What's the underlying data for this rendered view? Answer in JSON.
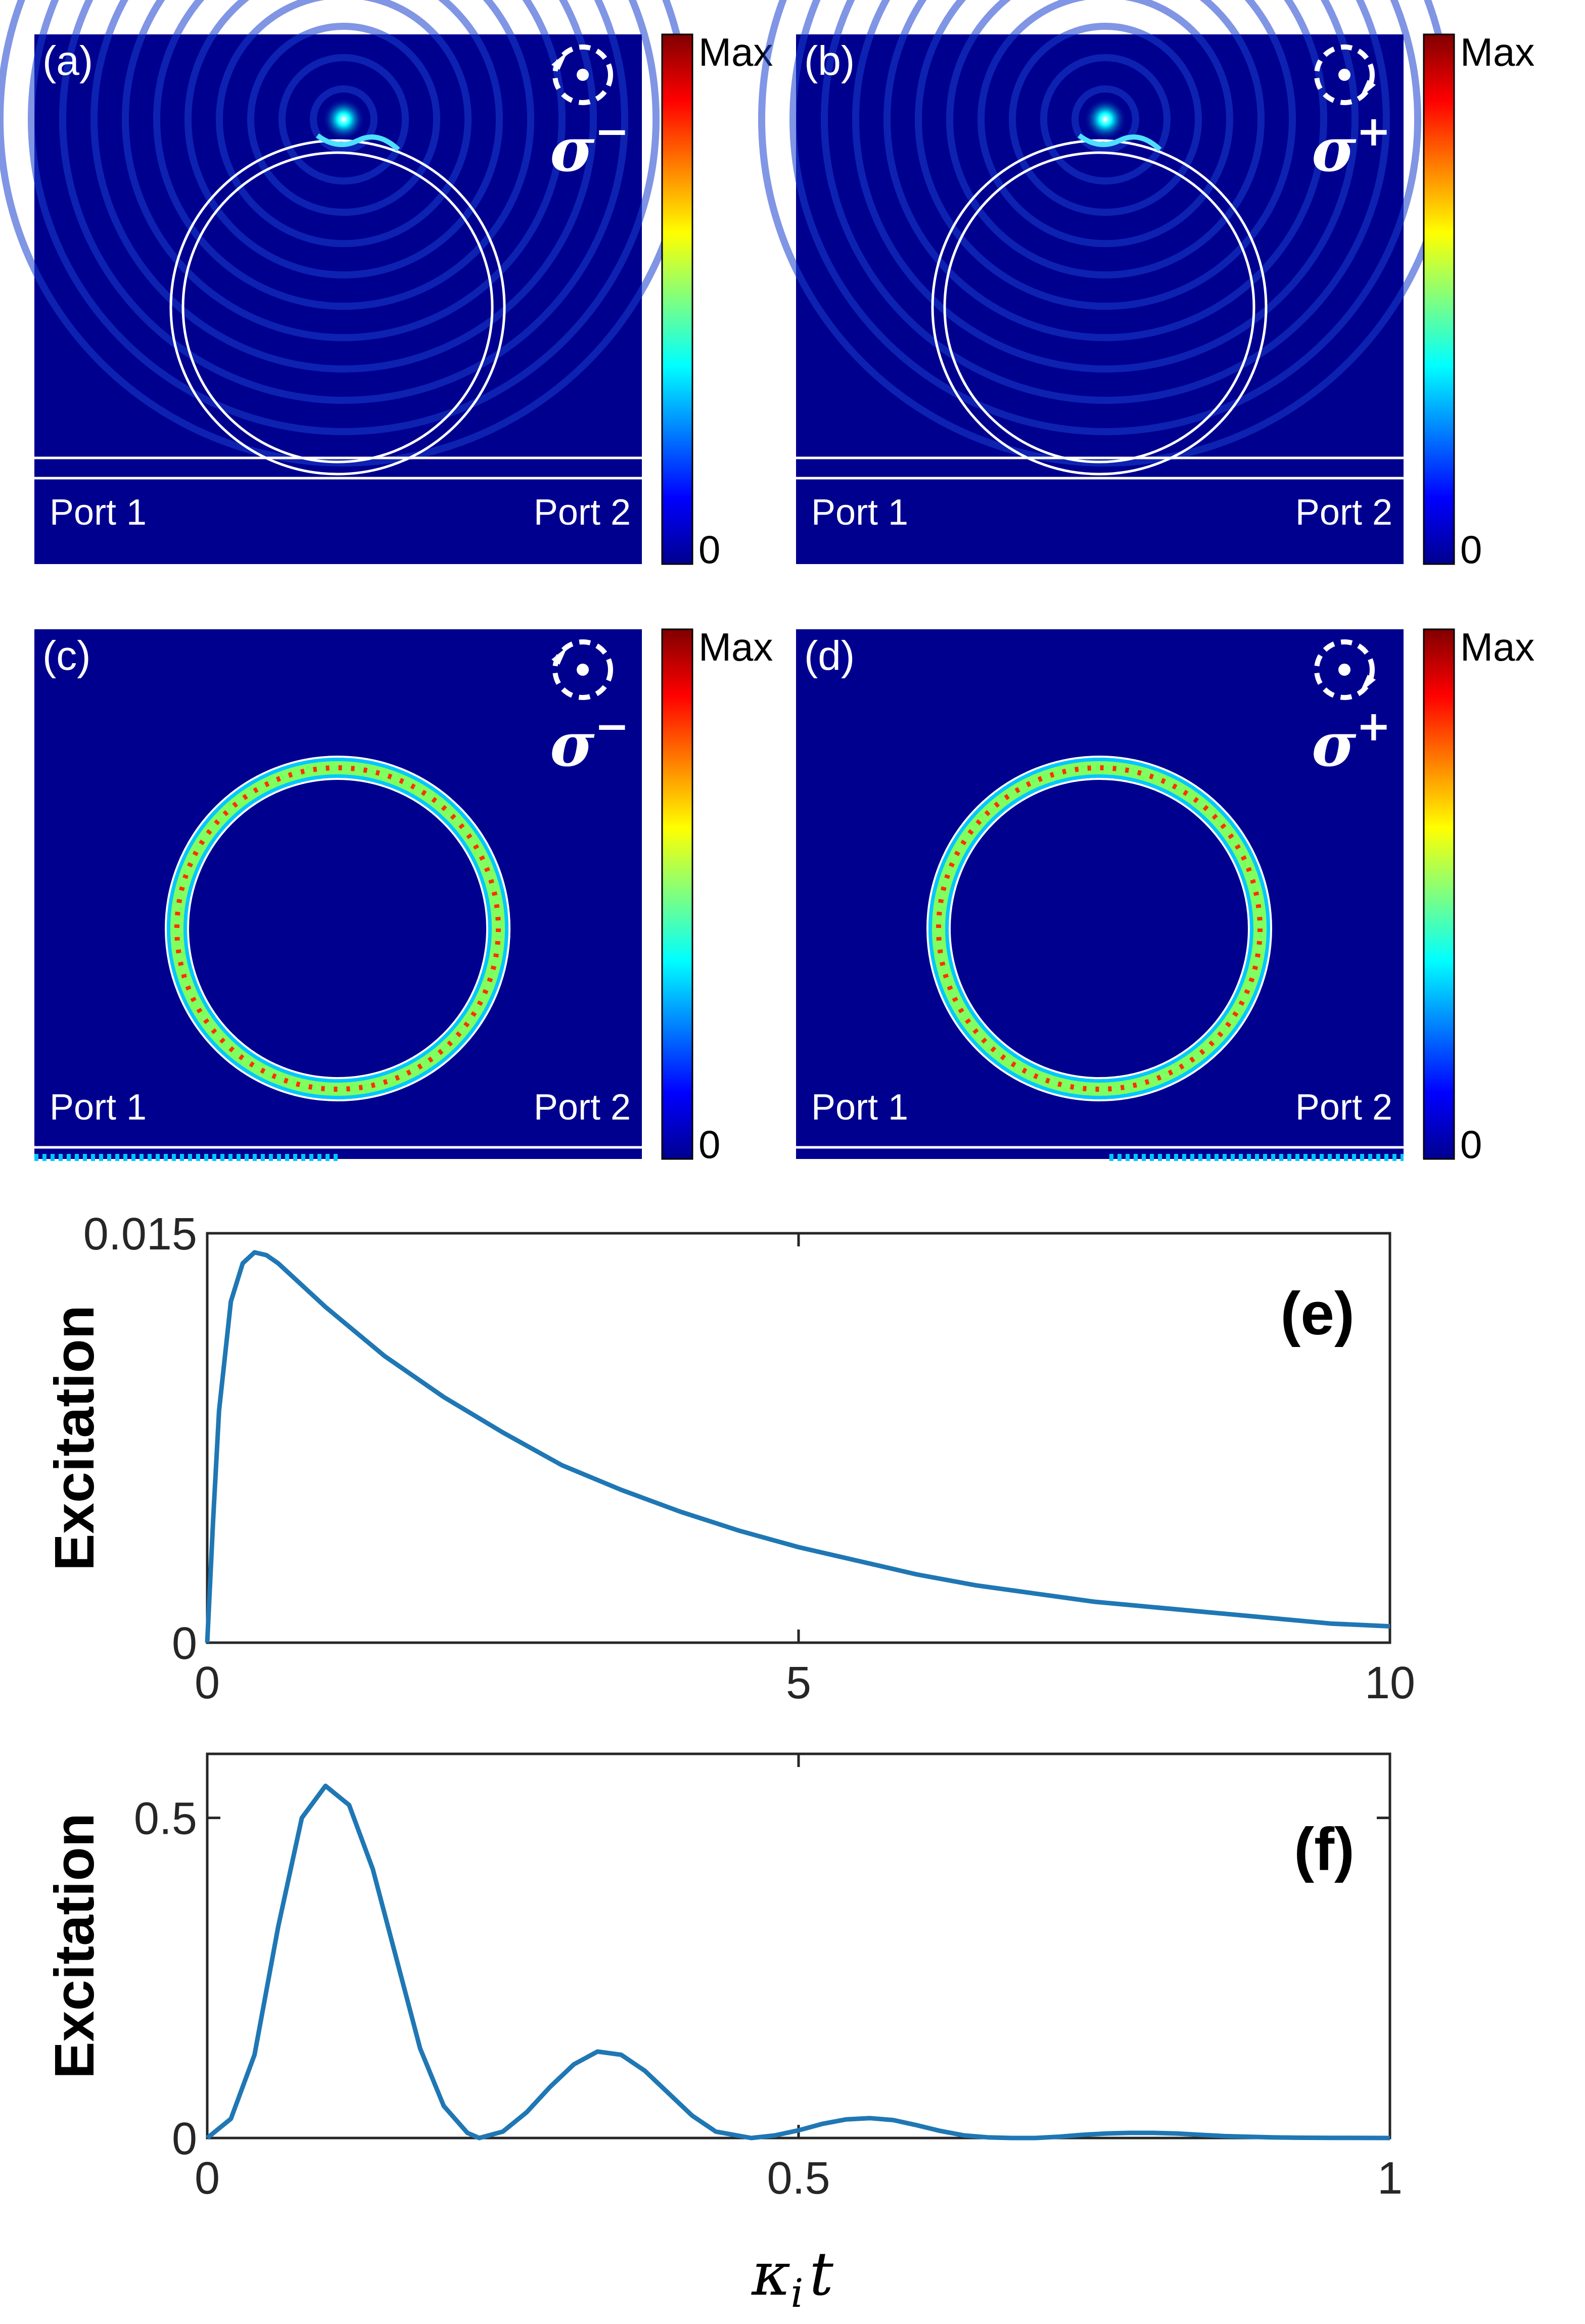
{
  "figure": {
    "panels": [
      {
        "id": "a",
        "label": "(a)",
        "polarization": "σ",
        "pol_sign": "−",
        "rotation": "ccw",
        "port_left": "Port 1",
        "port_right": "Port 2",
        "cb_max": "Max",
        "cb_min": "0",
        "mode": "emitter"
      },
      {
        "id": "b",
        "label": "(b)",
        "polarization": "σ",
        "pol_sign": "+",
        "rotation": "cw",
        "port_left": "Port 1",
        "port_right": "Port 2",
        "cb_max": "Max",
        "cb_min": "0",
        "mode": "emitter"
      },
      {
        "id": "c",
        "label": "(c)",
        "polarization": "σ",
        "pol_sign": "−",
        "rotation": "ccw",
        "port_left": "Port 1",
        "port_right": "Port 2",
        "cb_max": "Max",
        "cb_min": "0",
        "mode": "resonant-left"
      },
      {
        "id": "d",
        "label": "(d)",
        "polarization": "σ",
        "pol_sign": "+",
        "rotation": "cw",
        "port_left": "Port 1",
        "port_right": "Port 2",
        "cb_max": "Max",
        "cb_min": "0",
        "mode": "resonant-right"
      }
    ],
    "colors": {
      "field_bg": "#00008f",
      "ring": "#ffffff",
      "curve": "#1f77b4",
      "axis": "#262626"
    },
    "xlabel_sym": "κ",
    "xlabel_sub": "i",
    "xlabel_t": "t"
  },
  "chart_data": [
    {
      "type": "line",
      "panel_label": "(e)",
      "ylabel": "Excitation",
      "xlim": [
        0,
        10
      ],
      "ylim": [
        0,
        0.015
      ],
      "xticks": [
        0,
        5,
        10
      ],
      "xtick_labels": [
        "0",
        "5",
        "10"
      ],
      "yticks": [
        0,
        0.015
      ],
      "ytick_labels": [
        "0",
        "0.015"
      ],
      "x": [
        0,
        0.05,
        0.1,
        0.2,
        0.3,
        0.4,
        0.5,
        0.6,
        0.8,
        1.0,
        1.5,
        2.0,
        2.5,
        3.0,
        3.5,
        4.0,
        4.5,
        5.0,
        5.5,
        6.0,
        6.5,
        7.0,
        7.5,
        8.0,
        8.5,
        9.0,
        9.5,
        10.0
      ],
      "y": [
        0,
        0.0045,
        0.0085,
        0.0125,
        0.0139,
        0.0143,
        0.0142,
        0.0139,
        0.0131,
        0.0123,
        0.0105,
        0.009,
        0.0077,
        0.0065,
        0.0056,
        0.0048,
        0.0041,
        0.0035,
        0.003,
        0.0025,
        0.0021,
        0.0018,
        0.0015,
        0.0013,
        0.0011,
        0.0009,
        0.0007,
        0.0006
      ]
    },
    {
      "type": "line",
      "panel_label": "(f)",
      "ylabel": "Excitation",
      "xlim": [
        0,
        1
      ],
      "ylim": [
        0,
        0.6
      ],
      "xticks": [
        0,
        0.5,
        1
      ],
      "xtick_labels": [
        "0",
        "0.5",
        "1"
      ],
      "yticks": [
        0,
        0.5
      ],
      "ytick_labels": [
        "0",
        "0.5"
      ],
      "x": [
        0,
        0.02,
        0.04,
        0.06,
        0.08,
        0.1,
        0.12,
        0.14,
        0.16,
        0.18,
        0.2,
        0.22,
        0.23,
        0.25,
        0.27,
        0.29,
        0.31,
        0.33,
        0.35,
        0.37,
        0.39,
        0.41,
        0.43,
        0.46,
        0.48,
        0.5,
        0.52,
        0.54,
        0.56,
        0.58,
        0.6,
        0.62,
        0.64,
        0.66,
        0.68,
        0.7,
        0.72,
        0.74,
        0.76,
        0.78,
        0.8,
        0.82,
        0.84,
        0.86,
        0.88,
        0.9,
        0.92,
        0.95,
        1.0
      ],
      "y": [
        0,
        0.03,
        0.13,
        0.33,
        0.5,
        0.55,
        0.52,
        0.42,
        0.28,
        0.14,
        0.05,
        0.008,
        0.0,
        0.01,
        0.04,
        0.08,
        0.115,
        0.135,
        0.13,
        0.105,
        0.07,
        0.035,
        0.01,
        0.0,
        0.004,
        0.012,
        0.022,
        0.029,
        0.031,
        0.028,
        0.02,
        0.011,
        0.004,
        0.001,
        0.0,
        0.0,
        0.002,
        0.005,
        0.007,
        0.008,
        0.008,
        0.007,
        0.005,
        0.003,
        0.002,
        0.001,
        0.0005,
        0.0002,
        0.0
      ]
    }
  ]
}
